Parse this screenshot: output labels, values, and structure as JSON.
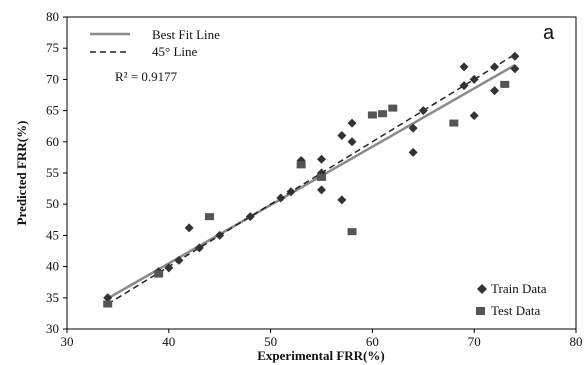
{
  "chart_data": {
    "type": "scatter",
    "title": "",
    "panel_label": "a",
    "xlabel": "Experimental FRR(%)",
    "ylabel": "Predicted FRR(%)",
    "xlim": [
      30,
      80
    ],
    "ylim": [
      30,
      80
    ],
    "xticks": [
      "30",
      "40",
      "50",
      "60",
      "70",
      "80"
    ],
    "yticks": [
      "30",
      "35",
      "40",
      "45",
      "50",
      "55",
      "60",
      "65",
      "70",
      "75",
      "80"
    ],
    "grid": false,
    "annotation": "R² = 0.9177",
    "lines": [
      {
        "name": "Best Fit Line",
        "style": "solid",
        "color": "#8a8a8a",
        "points": [
          [
            34,
            34.9
          ],
          [
            74,
            72.3
          ]
        ]
      },
      {
        "name": "45° Line",
        "style": "dashed",
        "color": "#222222",
        "points": [
          [
            34,
            34
          ],
          [
            74,
            74
          ]
        ]
      }
    ],
    "series": [
      {
        "name": "Train Data",
        "marker": "diamond",
        "color": "#333333",
        "points": [
          [
            34,
            35
          ],
          [
            39,
            39.2
          ],
          [
            40,
            39.8
          ],
          [
            41,
            41
          ],
          [
            42,
            46.2
          ],
          [
            43,
            43
          ],
          [
            45,
            45
          ],
          [
            48,
            48
          ],
          [
            51,
            51
          ],
          [
            52,
            52
          ],
          [
            53,
            57
          ],
          [
            55,
            57.2
          ],
          [
            55,
            52.3
          ],
          [
            55,
            55
          ],
          [
            57,
            61
          ],
          [
            57,
            50.7
          ],
          [
            58,
            63
          ],
          [
            58,
            60
          ],
          [
            64,
            62.2
          ],
          [
            64,
            58.3
          ],
          [
            65,
            65
          ],
          [
            69,
            72
          ],
          [
            69,
            69
          ],
          [
            70,
            70
          ],
          [
            70,
            64.2
          ],
          [
            72,
            72
          ],
          [
            72,
            68.2
          ],
          [
            74,
            73.7
          ],
          [
            74,
            71.7
          ]
        ]
      },
      {
        "name": "Test Data",
        "marker": "square",
        "color": "#555555",
        "points": [
          [
            34,
            34
          ],
          [
            39,
            38.8
          ],
          [
            44,
            48
          ],
          [
            53,
            56.3
          ],
          [
            55,
            54.3
          ],
          [
            58,
            45.6
          ],
          [
            60,
            64.3
          ],
          [
            61,
            64.5
          ],
          [
            62,
            65.4
          ],
          [
            68,
            63
          ],
          [
            73,
            69.2
          ]
        ]
      }
    ],
    "legend_position": "bottom-right"
  }
}
